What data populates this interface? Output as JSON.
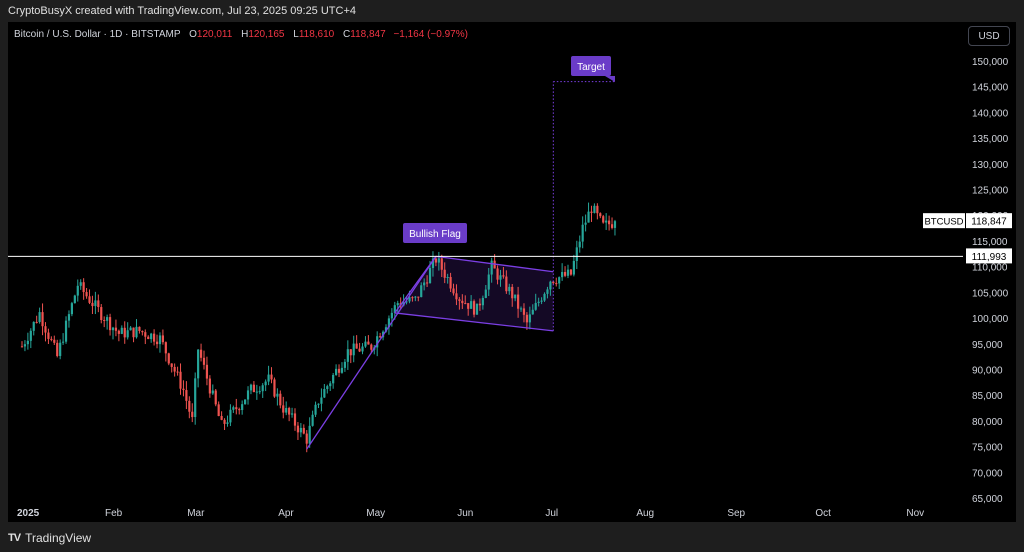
{
  "header": {
    "credit": "CryptoBusyX created with TradingView.com, Jul 23, 2025 09:25 UTC+4"
  },
  "legend": {
    "symbol": "Bitcoin / U.S. Dollar · 1D · BITSTAMP",
    "open_label": "O",
    "open": "120,011",
    "high_label": "H",
    "high": "120,165",
    "low_label": "L",
    "low": "118,610",
    "close_label": "C",
    "close": "118,847",
    "change": "−1,164 (−0.97%)"
  },
  "currency_button": "USD",
  "footer": {
    "brand": "TradingView",
    "logo": "TV"
  },
  "colors": {
    "up": "#26a69a",
    "down": "#ef5350",
    "pattern": "#7b3fe4",
    "label_bg": "#6a3cc8",
    "background": "#000000",
    "hline": "#ffffff"
  },
  "chart_data": {
    "type": "candlestick",
    "symbol": "BTCUSD",
    "x_tick_labels": [
      "2025",
      "Feb",
      "Mar",
      "Apr",
      "May",
      "Jun",
      "Jul",
      "Aug",
      "Sep",
      "Oct",
      "Nov"
    ],
    "y_tick_labels": [
      "65,000",
      "70,000",
      "75,000",
      "80,000",
      "85,000",
      "90,000",
      "95,000",
      "100,000",
      "105,000",
      "110,000",
      "115,000",
      "120,000",
      "125,000",
      "130,000",
      "135,000",
      "140,000",
      "145,000",
      "150,000"
    ],
    "ylim": [
      64000,
      153000
    ],
    "xlim": [
      "2024-12-30",
      "2025-11-20"
    ],
    "last_price_label": "BTCUSD",
    "last_price": "118,847",
    "horizontal_line_price": "111,993",
    "horizontal_line_value": 111993,
    "last_price_value": 118847,
    "annotations": [
      {
        "text": "Bullish Flag"
      },
      {
        "text": "Target",
        "value": 146000
      }
    ],
    "pattern": {
      "pole": [
        [
          "2025-04-08",
          74500
        ],
        [
          "2025-05-22",
          112000
        ]
      ],
      "flag_upper": [
        [
          "2025-05-22",
          112000
        ],
        [
          "2025-07-01",
          109000
        ]
      ],
      "flag_lower": [
        [
          "2025-05-08",
          101000
        ],
        [
          "2025-07-01",
          97500
        ]
      ]
    },
    "waypoints": [
      [
        "2025-01-01",
        94500
      ],
      [
        "2025-01-07",
        101000
      ],
      [
        "2025-01-13",
        92500
      ],
      [
        "2025-01-20",
        106500
      ],
      [
        "2025-01-27",
        101500
      ],
      [
        "2025-02-03",
        97000
      ],
      [
        "2025-02-10",
        97500
      ],
      [
        "2025-02-17",
        96000
      ],
      [
        "2025-02-25",
        86000
      ],
      [
        "2025-02-28",
        80000
      ],
      [
        "2025-03-02",
        94000
      ],
      [
        "2025-03-10",
        79000
      ],
      [
        "2025-03-20",
        86000
      ],
      [
        "2025-03-26",
        88000
      ],
      [
        "2025-03-31",
        82500
      ],
      [
        "2025-04-08",
        76500
      ],
      [
        "2025-04-12",
        84000
      ],
      [
        "2025-04-22",
        93500
      ],
      [
        "2025-04-30",
        94500
      ],
      [
        "2025-05-09",
        103000
      ],
      [
        "2025-05-15",
        103500
      ],
      [
        "2025-05-22",
        111500
      ],
      [
        "2025-05-30",
        104000
      ],
      [
        "2025-06-05",
        101500
      ],
      [
        "2025-06-10",
        110000
      ],
      [
        "2025-06-17",
        104500
      ],
      [
        "2025-06-22",
        99000
      ],
      [
        "2025-06-30",
        107500
      ],
      [
        "2025-07-07",
        108500
      ],
      [
        "2025-07-11",
        117500
      ],
      [
        "2025-07-14",
        121500
      ],
      [
        "2025-07-18",
        117800
      ],
      [
        "2025-07-22",
        118847
      ]
    ]
  }
}
